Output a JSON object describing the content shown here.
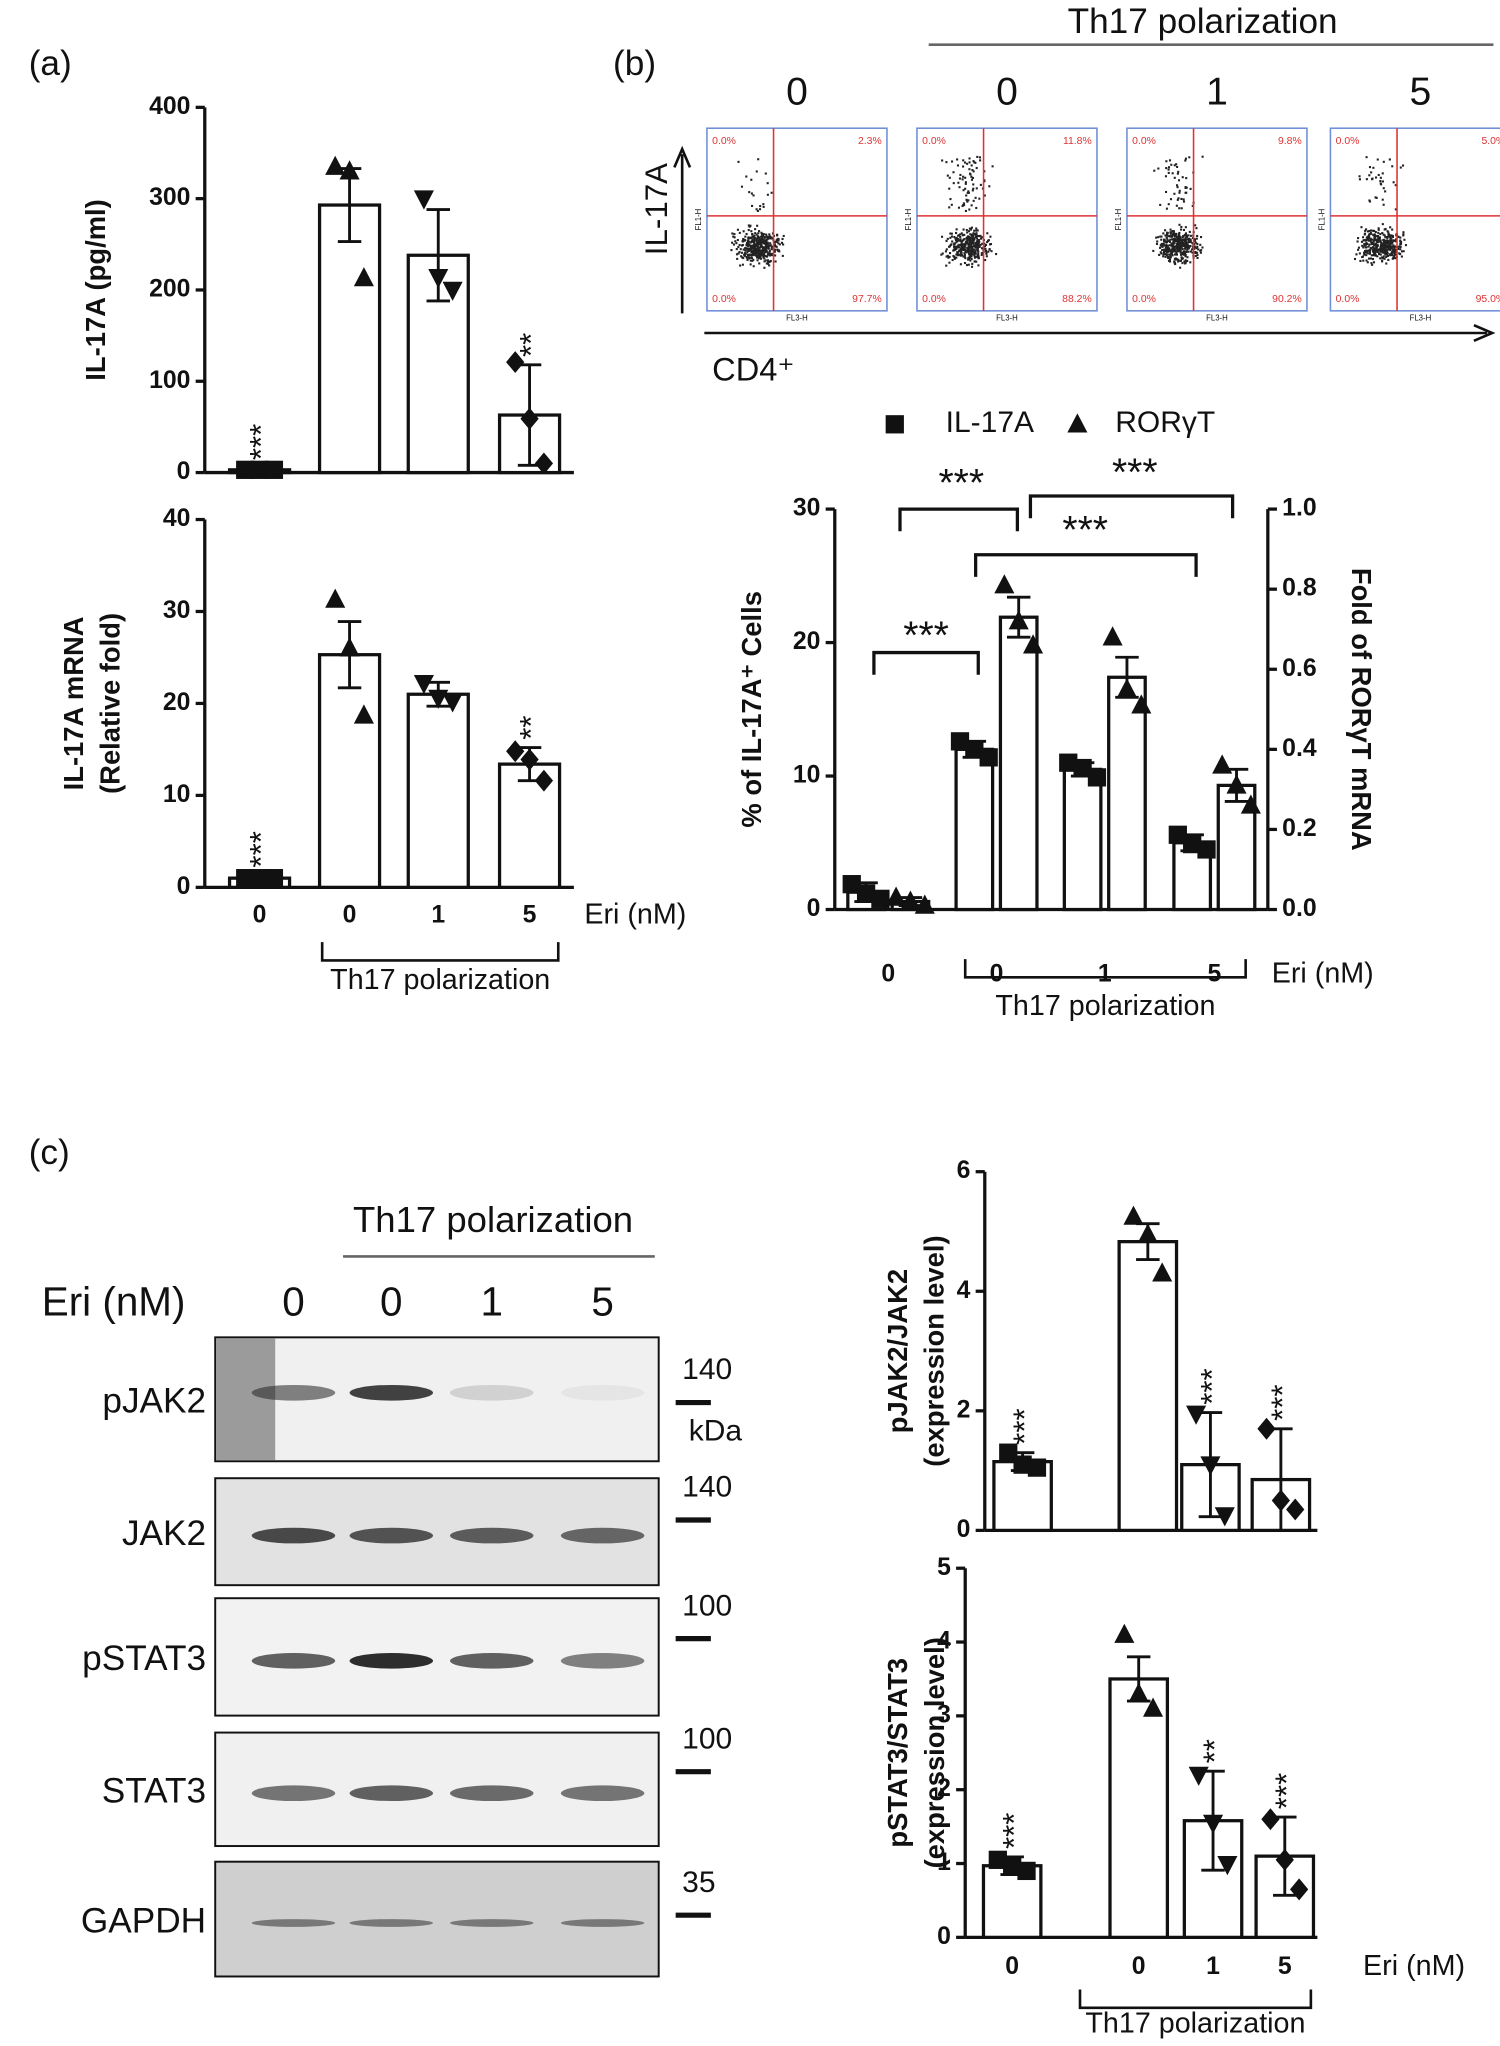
{
  "panel_labels": [
    "(a)",
    "(b)",
    "(c)"
  ],
  "chart_data": [
    {
      "type": "bar",
      "y_label": "IL-17A (pg/ml)",
      "values": [
        3,
        293,
        238,
        63
      ],
      "errors": [
        2,
        40,
        50,
        55
      ],
      "points": [
        [
          3,
          3,
          3
        ],
        [
          335,
          330,
          213
        ],
        [
          300,
          214,
          200
        ],
        [
          121,
          59,
          10
        ]
      ],
      "markers": [
        "square",
        "triangle",
        "triangle-down",
        "diamond"
      ],
      "significance": [
        "***",
        null,
        null,
        "**"
      ],
      "ylim": [
        0,
        400
      ],
      "yticks": [
        0,
        100,
        200,
        300,
        400
      ],
      "color": "#ffffff"
    },
    {
      "type": "bar",
      "y_label": [
        "IL-17A mRNA",
        "(Relative fold)"
      ],
      "values": [
        1,
        25.3,
        21,
        13.4
      ],
      "errors": [
        0.3,
        3.6,
        1.3,
        1.8
      ],
      "points": [
        [
          1,
          1,
          1
        ],
        [
          31.3,
          26,
          18.7
        ],
        [
          22.2,
          20.6,
          20.2
        ],
        [
          14.8,
          13.9,
          11.6
        ]
      ],
      "markers": [
        "square",
        "triangle",
        "triangle-down",
        "diamond"
      ],
      "significance": [
        "***",
        null,
        null,
        "**"
      ],
      "ylim": [
        0,
        40
      ],
      "yticks": [
        0,
        10,
        20,
        30,
        40
      ],
      "categories": [
        "0",
        "0",
        "1",
        "5"
      ],
      "x_label": "Eri (nM)",
      "group_label": "Th17 polarization",
      "color": "#ffffff"
    },
    {
      "type": "bar",
      "y_label": "% of IL-17A⁺ Cells",
      "y2_label": "Fold of RORγT mRNA",
      "categories": [
        "0",
        "0",
        "1",
        "5"
      ],
      "x_label": "Eri (nM)",
      "group_label": "Th17 polarization",
      "series": [
        {
          "name": "IL-17A",
          "marker": "square",
          "color": "#ffffff",
          "values": [
            1.3,
            12,
            10.5,
            5
          ],
          "errors": [
            0.7,
            0.6,
            0.5,
            0.6
          ],
          "points": [
            [
              1.9,
              1.2,
              0.8
            ],
            [
              12.6,
              12,
              11.4
            ],
            [
              11,
              10.6,
              9.9
            ],
            [
              5.6,
              4.9,
              4.5
            ]
          ]
        },
        {
          "name": "RORγT",
          "marker": "triangle",
          "color": "#ffffff",
          "axis": "y2",
          "values": [
            0.02,
            0.73,
            0.58,
            0.31
          ],
          "errors": [
            0.01,
            0.05,
            0.05,
            0.04
          ],
          "points": [
            [
              0.03,
              0.02,
              0.01
            ],
            [
              0.81,
              0.72,
              0.66
            ],
            [
              0.68,
              0.55,
              0.51
            ],
            [
              0.36,
              0.31,
              0.26
            ]
          ]
        }
      ],
      "annotations": [
        "***",
        "***",
        "***",
        "***"
      ],
      "ylim": [
        0,
        30
      ],
      "yticks": [
        0,
        10,
        20,
        30
      ],
      "y2lim": [
        0,
        1
      ],
      "y2ticks": [
        {
          "value": 0,
          "label": "0.0"
        },
        0.2,
        0.4,
        0.6,
        0.8,
        {
          "value": 1,
          "label": "1.0"
        }
      ]
    },
    {
      "type": "bar",
      "y_label": [
        "pJAK2/JAK2",
        "(expression level)"
      ],
      "values": [
        1.15,
        4.83,
        1.1,
        0.85
      ],
      "errors": [
        0.15,
        0.3,
        0.87,
        0.85
      ],
      "points": [
        [
          1.3,
          1.1,
          1.05
        ],
        [
          5.25,
          4.95,
          4.3
        ],
        [
          1.95,
          1.1,
          0.25
        ],
        [
          1.7,
          0.5,
          0.35
        ]
      ],
      "markers": [
        "square",
        "triangle",
        "triangle-down",
        "diamond"
      ],
      "significance": [
        "***",
        null,
        "***",
        "***"
      ],
      "ylim": [
        0,
        6
      ],
      "yticks": [
        0,
        2,
        4,
        6
      ],
      "color": "#ffffff"
    },
    {
      "type": "bar",
      "y_label": [
        "pSTAT3/STAT3",
        "(expression level)"
      ],
      "values": [
        0.97,
        3.5,
        1.58,
        1.1
      ],
      "errors": [
        0.12,
        0.3,
        0.67,
        0.53
      ],
      "points": [
        [
          1.05,
          0.97,
          0.9
        ],
        [
          4.1,
          3.3,
          3.1
        ],
        [
          2.2,
          1.55,
          0.99
        ],
        [
          1.6,
          1.05,
          0.65
        ]
      ],
      "markers": [
        "square",
        "triangle",
        "triangle-down",
        "diamond"
      ],
      "significance": [
        "***",
        null,
        "**",
        "***"
      ],
      "ylim": [
        0,
        5
      ],
      "yticks": [
        0,
        1,
        2,
        3,
        4,
        5
      ],
      "categories": [
        "0",
        "0",
        "1",
        "5"
      ],
      "x_label": "Eri (nM)",
      "group_label": "Th17 polarization",
      "color": "#ffffff"
    }
  ],
  "flow": {
    "group_label": "Th17 polarization",
    "columns": [
      "0",
      "0",
      "1",
      "5"
    ],
    "y_label": "IL-17A",
    "x_label": "CD4⁺",
    "channel_x": "FL3-H",
    "channel_y": "FL1-H",
    "plots": [
      {
        "quadrants": [
          "0.0%",
          "2.3%",
          "0.0%",
          "97.7%"
        ]
      },
      {
        "quadrants": [
          "0.0%",
          "11.8%",
          "0.0%",
          "88.2%"
        ]
      },
      {
        "quadrants": [
          "0.0%",
          "9.8%",
          "0.0%",
          "90.2%"
        ]
      },
      {
        "quadrants": [
          "0.0%",
          "5.0%",
          "0.0%",
          "95.0%"
        ]
      }
    ]
  },
  "western_blot": {
    "group_label": "Th17 polarization",
    "eri_label": "Eri (nM)",
    "lanes": [
      "0",
      "0",
      "1",
      "5"
    ],
    "rows": [
      {
        "name": "pJAK2",
        "marker": "140",
        "unit": "kDa"
      },
      {
        "name": "JAK2",
        "marker": "140"
      },
      {
        "name": "pSTAT3",
        "marker": "100"
      },
      {
        "name": "STAT3",
        "marker": "100"
      },
      {
        "name": "GAPDH",
        "marker": "35"
      }
    ]
  }
}
